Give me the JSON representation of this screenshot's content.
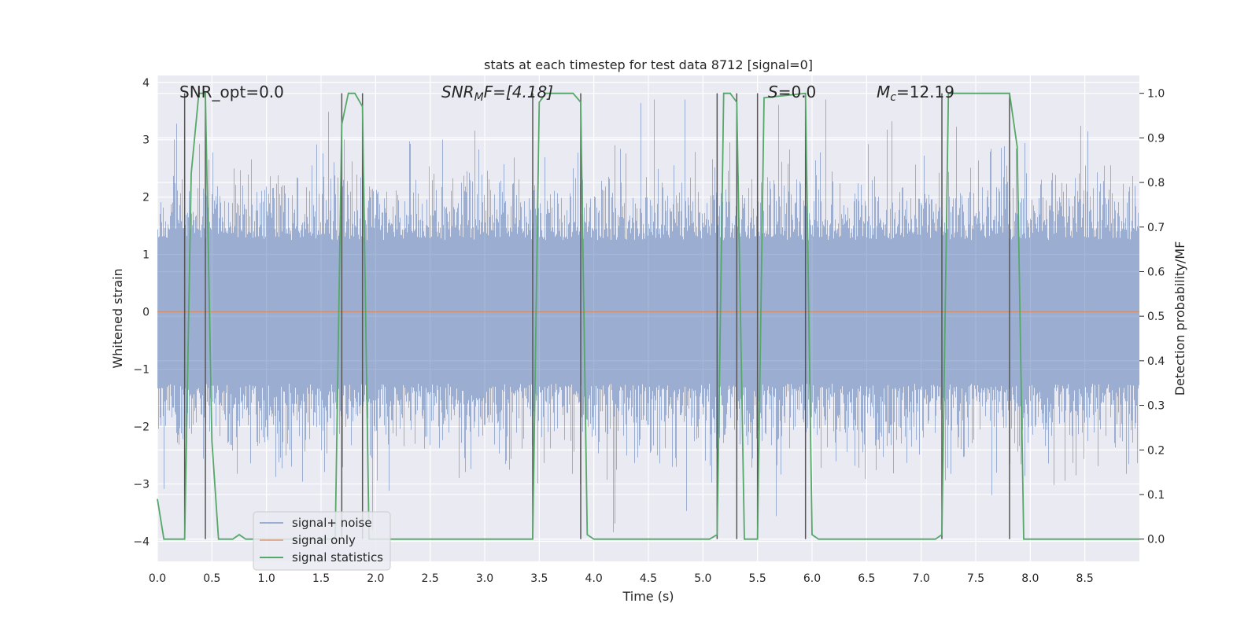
{
  "chart_data": {
    "type": "line",
    "title": "stats at each timestep for test data 8712 [signal=0]",
    "xlabel": "Time (s)",
    "ylabel": "Whitened strain",
    "y2label": "Detection probability/MF",
    "xlim": [
      0,
      9
    ],
    "ylim": [
      -4.35,
      4.12
    ],
    "y2lim": [
      -0.05,
      1.04
    ],
    "xticks": [
      "0.0",
      "0.5",
      "1.0",
      "1.5",
      "2.0",
      "2.5",
      "3.0",
      "3.5",
      "4.0",
      "4.5",
      "5.0",
      "5.5",
      "6.0",
      "6.5",
      "7.0",
      "7.5",
      "8.0",
      "8.5"
    ],
    "yticks": [
      "4",
      "3",
      "2",
      "1",
      "0",
      "−1",
      "−2",
      "−3",
      "−4"
    ],
    "y2ticks": [
      "1.0",
      "0.9",
      "0.8",
      "0.7",
      "0.6",
      "0.5",
      "0.4",
      "0.3",
      "0.2",
      "0.1",
      "0.0"
    ],
    "grid": true,
    "legend_position": "lower-left",
    "annotations": {
      "snr_opt": "SNR_opt=0.0",
      "snr_mf_prefix": "SNR",
      "snr_mf_sub": "M",
      "snr_mf_suffix": "F=[4.18]",
      "s_var": "S",
      "s_val": "=0.0",
      "mc_var": "M",
      "mc_sub": "c",
      "mc_val": "=12.19"
    },
    "series": [
      {
        "name": "signal+ noise",
        "color": "#4c72b0",
        "kind": "noise",
        "sample_rate": 1024,
        "amplitude_envelope": [
          -4.0,
          3.7
        ]
      },
      {
        "name": "signal only",
        "color": "#dd8452",
        "x": [
          0,
          9
        ],
        "y": [
          0,
          0
        ]
      },
      {
        "name": "signal statistics",
        "color": "#55a868",
        "axis": "y2",
        "x": [
          0.0,
          0.06,
          0.13,
          0.25,
          0.31,
          0.38,
          0.44,
          0.5,
          0.56,
          0.63,
          0.69,
          0.75,
          0.81,
          0.88,
          1.0,
          1.63,
          1.69,
          1.75,
          1.81,
          1.88,
          1.94,
          2.0,
          3.44,
          3.5,
          3.56,
          3.63,
          3.81,
          3.88,
          3.94,
          4.0,
          5.06,
          5.13,
          5.19,
          5.25,
          5.31,
          5.38,
          5.44,
          5.5,
          5.56,
          5.94,
          6.0,
          6.06,
          7.13,
          7.19,
          7.25,
          7.81,
          7.88,
          7.94,
          8.0,
          9.0
        ],
        "y": [
          0.09,
          0.0,
          0.0,
          0.0,
          0.82,
          1.0,
          1.0,
          0.22,
          0.0,
          0.0,
          0.0,
          0.01,
          0.0,
          0.0,
          0.0,
          0.0,
          0.93,
          1.0,
          1.0,
          0.97,
          0.0,
          0.0,
          0.0,
          0.98,
          1.0,
          1.0,
          1.0,
          0.98,
          0.01,
          0.0,
          0.0,
          0.01,
          1.0,
          1.0,
          0.98,
          0.0,
          0.0,
          0.0,
          0.99,
          1.0,
          0.01,
          0.0,
          0.0,
          0.01,
          1.0,
          1.0,
          0.88,
          0.0,
          0.0,
          0.0
        ]
      }
    ],
    "vertical_lines": {
      "color": "#555555",
      "x": [
        0.25,
        0.44,
        1.69,
        1.88,
        3.44,
        3.88,
        5.13,
        5.31,
        5.5,
        5.94,
        7.19,
        7.81
      ]
    }
  }
}
